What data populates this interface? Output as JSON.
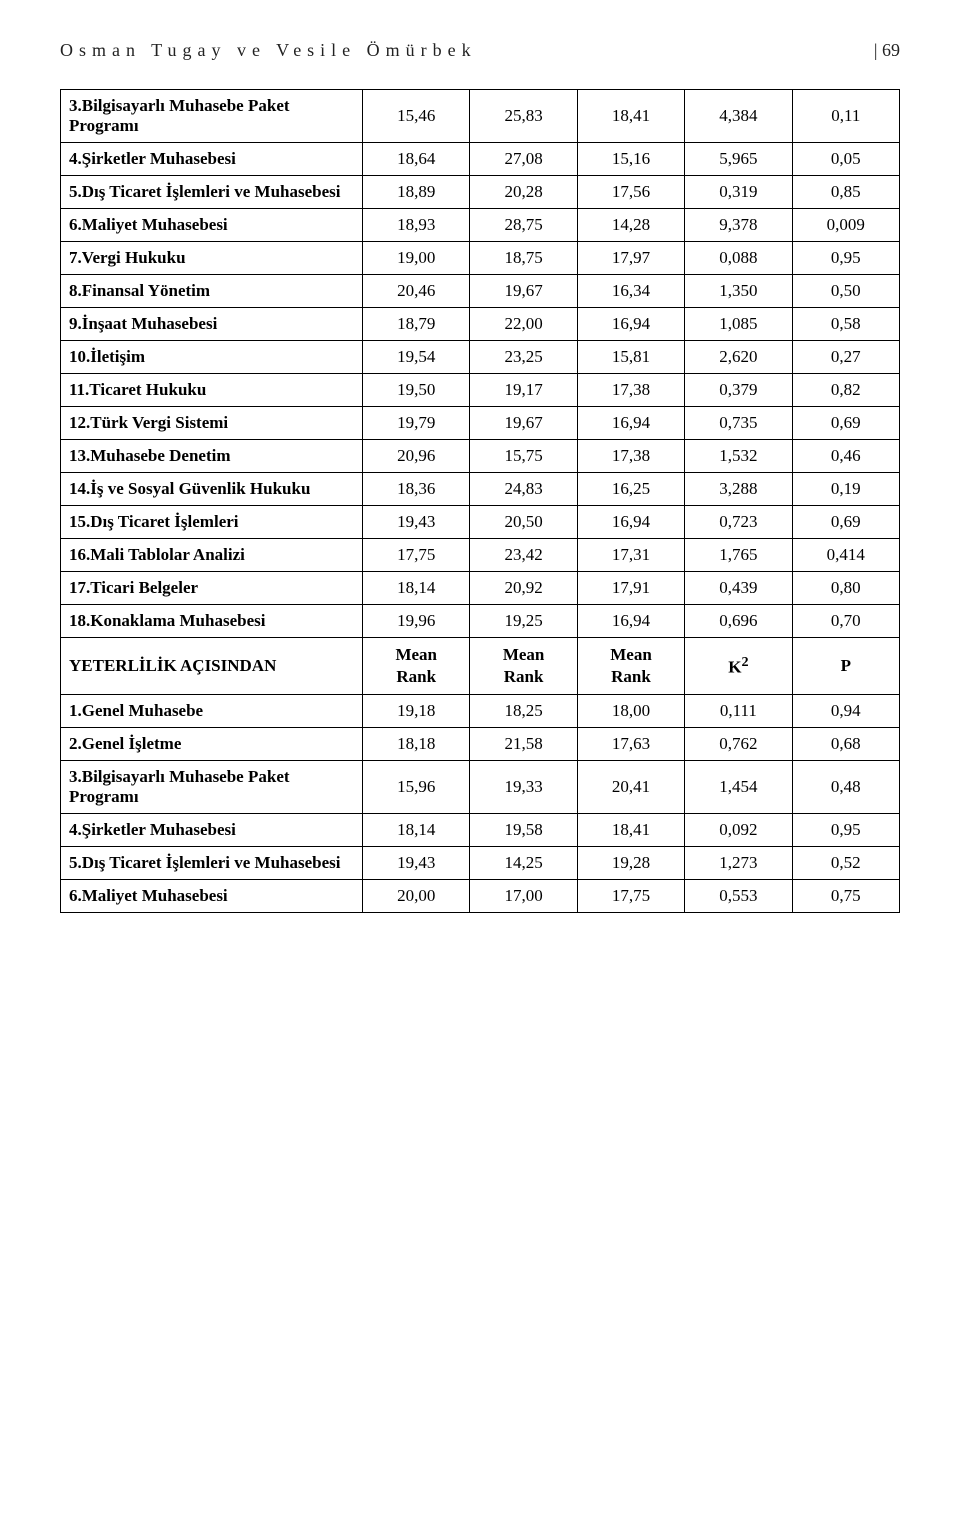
{
  "header": {
    "authors": "Osman Tugay ve Vesile Ömürbek",
    "page": "| 69"
  },
  "rows1": [
    {
      "label": "3.Bilgisayarlı Muhasebe Paket Programı",
      "c1": "15,46",
      "c2": "25,83",
      "c3": "18,41",
      "c4": "4,384",
      "c5": "0,11"
    },
    {
      "label": "4.Şirketler Muhasebesi",
      "c1": "18,64",
      "c2": "27,08",
      "c3": "15,16",
      "c4": "5,965",
      "c5": "0,05"
    },
    {
      "label": "5.Dış Ticaret İşlemleri ve Muhasebesi",
      "c1": "18,89",
      "c2": "20,28",
      "c3": "17,56",
      "c4": "0,319",
      "c5": "0,85"
    },
    {
      "label": "6.Maliyet Muhasebesi",
      "c1": "18,93",
      "c2": "28,75",
      "c3": "14,28",
      "c4": "9,378",
      "c5": "0,009"
    },
    {
      "label": "7.Vergi Hukuku",
      "c1": "19,00",
      "c2": "18,75",
      "c3": "17,97",
      "c4": "0,088",
      "c5": "0,95"
    },
    {
      "label": "8.Finansal Yönetim",
      "c1": "20,46",
      "c2": "19,67",
      "c3": "16,34",
      "c4": "1,350",
      "c5": "0,50"
    },
    {
      "label": "9.İnşaat Muhasebesi",
      "c1": "18,79",
      "c2": "22,00",
      "c3": "16,94",
      "c4": "1,085",
      "c5": "0,58"
    },
    {
      "label": "10.İletişim",
      "c1": "19,54",
      "c2": "23,25",
      "c3": "15,81",
      "c4": "2,620",
      "c5": "0,27"
    },
    {
      "label": "11.Ticaret Hukuku",
      "c1": "19,50",
      "c2": "19,17",
      "c3": "17,38",
      "c4": "0,379",
      "c5": "0,82"
    },
    {
      "label": "12.Türk Vergi Sistemi",
      "c1": "19,79",
      "c2": "19,67",
      "c3": "16,94",
      "c4": "0,735",
      "c5": "0,69"
    },
    {
      "label": "13.Muhasebe Denetim",
      "c1": "20,96",
      "c2": "15,75",
      "c3": "17,38",
      "c4": "1,532",
      "c5": "0,46"
    },
    {
      "label": "14.İş ve Sosyal Güvenlik Hukuku",
      "c1": "18,36",
      "c2": "24,83",
      "c3": "16,25",
      "c4": "3,288",
      "c5": "0,19"
    },
    {
      "label": "15.Dış Ticaret İşlemleri",
      "c1": "19,43",
      "c2": "20,50",
      "c3": "16,94",
      "c4": "0,723",
      "c5": "0,69"
    },
    {
      "label": "16.Mali Tablolar Analizi",
      "c1": "17,75",
      "c2": "23,42",
      "c3": "17,31",
      "c4": "1,765",
      "c5": "0,414"
    },
    {
      "label": "17.Ticari Belgeler",
      "c1": "18,14",
      "c2": "20,92",
      "c3": "17,91",
      "c4": "0,439",
      "c5": "0,80"
    },
    {
      "label": "18.Konaklama Muhasebesi",
      "c1": "19,96",
      "c2": "19,25",
      "c3": "16,94",
      "c4": "0,696",
      "c5": "0,70"
    }
  ],
  "section2": {
    "title": "YETERLİLİK AÇISINDAN",
    "h1": "Mean Rank",
    "h2": "Mean Rank",
    "h3": "Mean Rank",
    "h4": "K²",
    "h5": "P"
  },
  "rows2": [
    {
      "label": "1.Genel Muhasebe",
      "c1": "19,18",
      "c2": "18,25",
      "c3": "18,00",
      "c4": "0,111",
      "c5": "0,94"
    },
    {
      "label": "2.Genel İşletme",
      "c1": "18,18",
      "c2": "21,58",
      "c3": "17,63",
      "c4": "0,762",
      "c5": "0,68"
    },
    {
      "label": "3.Bilgisayarlı Muhasebe Paket Programı",
      "c1": "15,96",
      "c2": "19,33",
      "c3": "20,41",
      "c4": "1,454",
      "c5": "0,48"
    },
    {
      "label": "4.Şirketler Muhasebesi",
      "c1": "18,14",
      "c2": "19,58",
      "c3": "18,41",
      "c4": "0,092",
      "c5": "0,95"
    },
    {
      "label": "5.Dış Ticaret İşlemleri ve Muhasebesi",
      "c1": "19,43",
      "c2": "14,25",
      "c3": "19,28",
      "c4": "1,273",
      "c5": "0,52"
    },
    {
      "label": "6.Maliyet Muhasebesi",
      "c1": "20,00",
      "c2": "17,00",
      "c3": "17,75",
      "c4": "0,553",
      "c5": "0,75"
    }
  ]
}
